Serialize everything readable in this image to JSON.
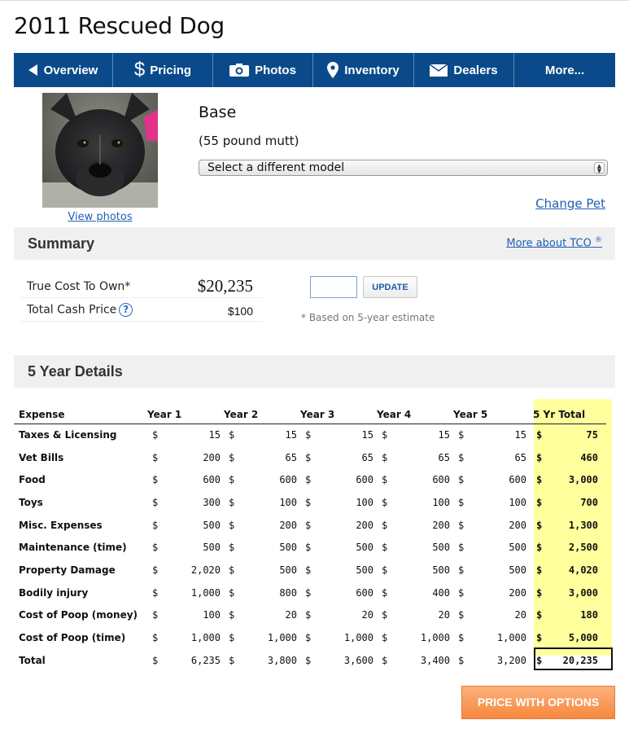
{
  "page": {
    "title": "2011 Rescued Dog"
  },
  "nav": {
    "items": [
      {
        "label": "Overview",
        "icon": "back-arrow-icon"
      },
      {
        "label": "Pricing",
        "icon": "dollar-icon"
      },
      {
        "label": "Photos",
        "icon": "camera-icon"
      },
      {
        "label": "Inventory",
        "icon": "location-pin-icon"
      },
      {
        "label": "Dealers",
        "icon": "envelope-icon"
      },
      {
        "label": "More..."
      }
    ]
  },
  "pet": {
    "view_photos": "View photos",
    "model_name": "Base",
    "description": "(55 pound mutt)",
    "select_value": "Select a different model",
    "change_pet": "Change Pet"
  },
  "summary": {
    "title": "Summary",
    "tco_link": "More about TCO",
    "tco_sup": "®",
    "rows": [
      {
        "label": "True Cost To Own*",
        "value": "$20,235"
      },
      {
        "label": "Total Cash Price",
        "value": "$100"
      }
    ],
    "zip_value": "",
    "update_label": "UPDATE",
    "note": "* Based on 5-year estimate"
  },
  "details": {
    "title": "5 Year Details",
    "headers": [
      "Expense",
      "Year 1",
      "Year 2",
      "Year 3",
      "Year 4",
      "Year 5",
      "5 Yr Total"
    ],
    "currency": "$",
    "rows": [
      {
        "expense": "Taxes & Licensing",
        "values": [
          "15",
          "15",
          "15",
          "15",
          "15"
        ],
        "total": "75"
      },
      {
        "expense": "Vet Bills",
        "values": [
          "200",
          "65",
          "65",
          "65",
          "65"
        ],
        "total": "460"
      },
      {
        "expense": "Food",
        "values": [
          "600",
          "600",
          "600",
          "600",
          "600"
        ],
        "total": "3,000"
      },
      {
        "expense": "Toys",
        "values": [
          "300",
          "100",
          "100",
          "100",
          "100"
        ],
        "total": "700"
      },
      {
        "expense": "Misc. Expenses",
        "values": [
          "500",
          "200",
          "200",
          "200",
          "200"
        ],
        "total": "1,300"
      },
      {
        "expense": "Maintenance (time)",
        "values": [
          "500",
          "500",
          "500",
          "500",
          "500"
        ],
        "total": "2,500"
      },
      {
        "expense": "Property Damage",
        "values": [
          "2,020",
          "500",
          "500",
          "500",
          "500"
        ],
        "total": "4,020"
      },
      {
        "expense": "Bodily injury",
        "values": [
          "1,000",
          "800",
          "600",
          "400",
          "200"
        ],
        "total": "3,000"
      },
      {
        "expense": "Cost of Poop (money)",
        "values": [
          "100",
          "20",
          "20",
          "20",
          "20"
        ],
        "total": "180"
      },
      {
        "expense": "Cost of Poop (time)",
        "values": [
          "1,000",
          "1,000",
          "1,000",
          "1,000",
          "1,000"
        ],
        "total": "5,000"
      },
      {
        "expense": "Total",
        "values": [
          "6,235",
          "3,800",
          "3,600",
          "3,400",
          "3,200"
        ],
        "total": "20,235"
      }
    ]
  },
  "cta": {
    "label": "PRICE WITH OPTIONS"
  },
  "colors": {
    "nav": "#0b4a8a",
    "link": "#1f5fb5",
    "highlight": "#ffff9e",
    "cta": "#f7883d"
  }
}
